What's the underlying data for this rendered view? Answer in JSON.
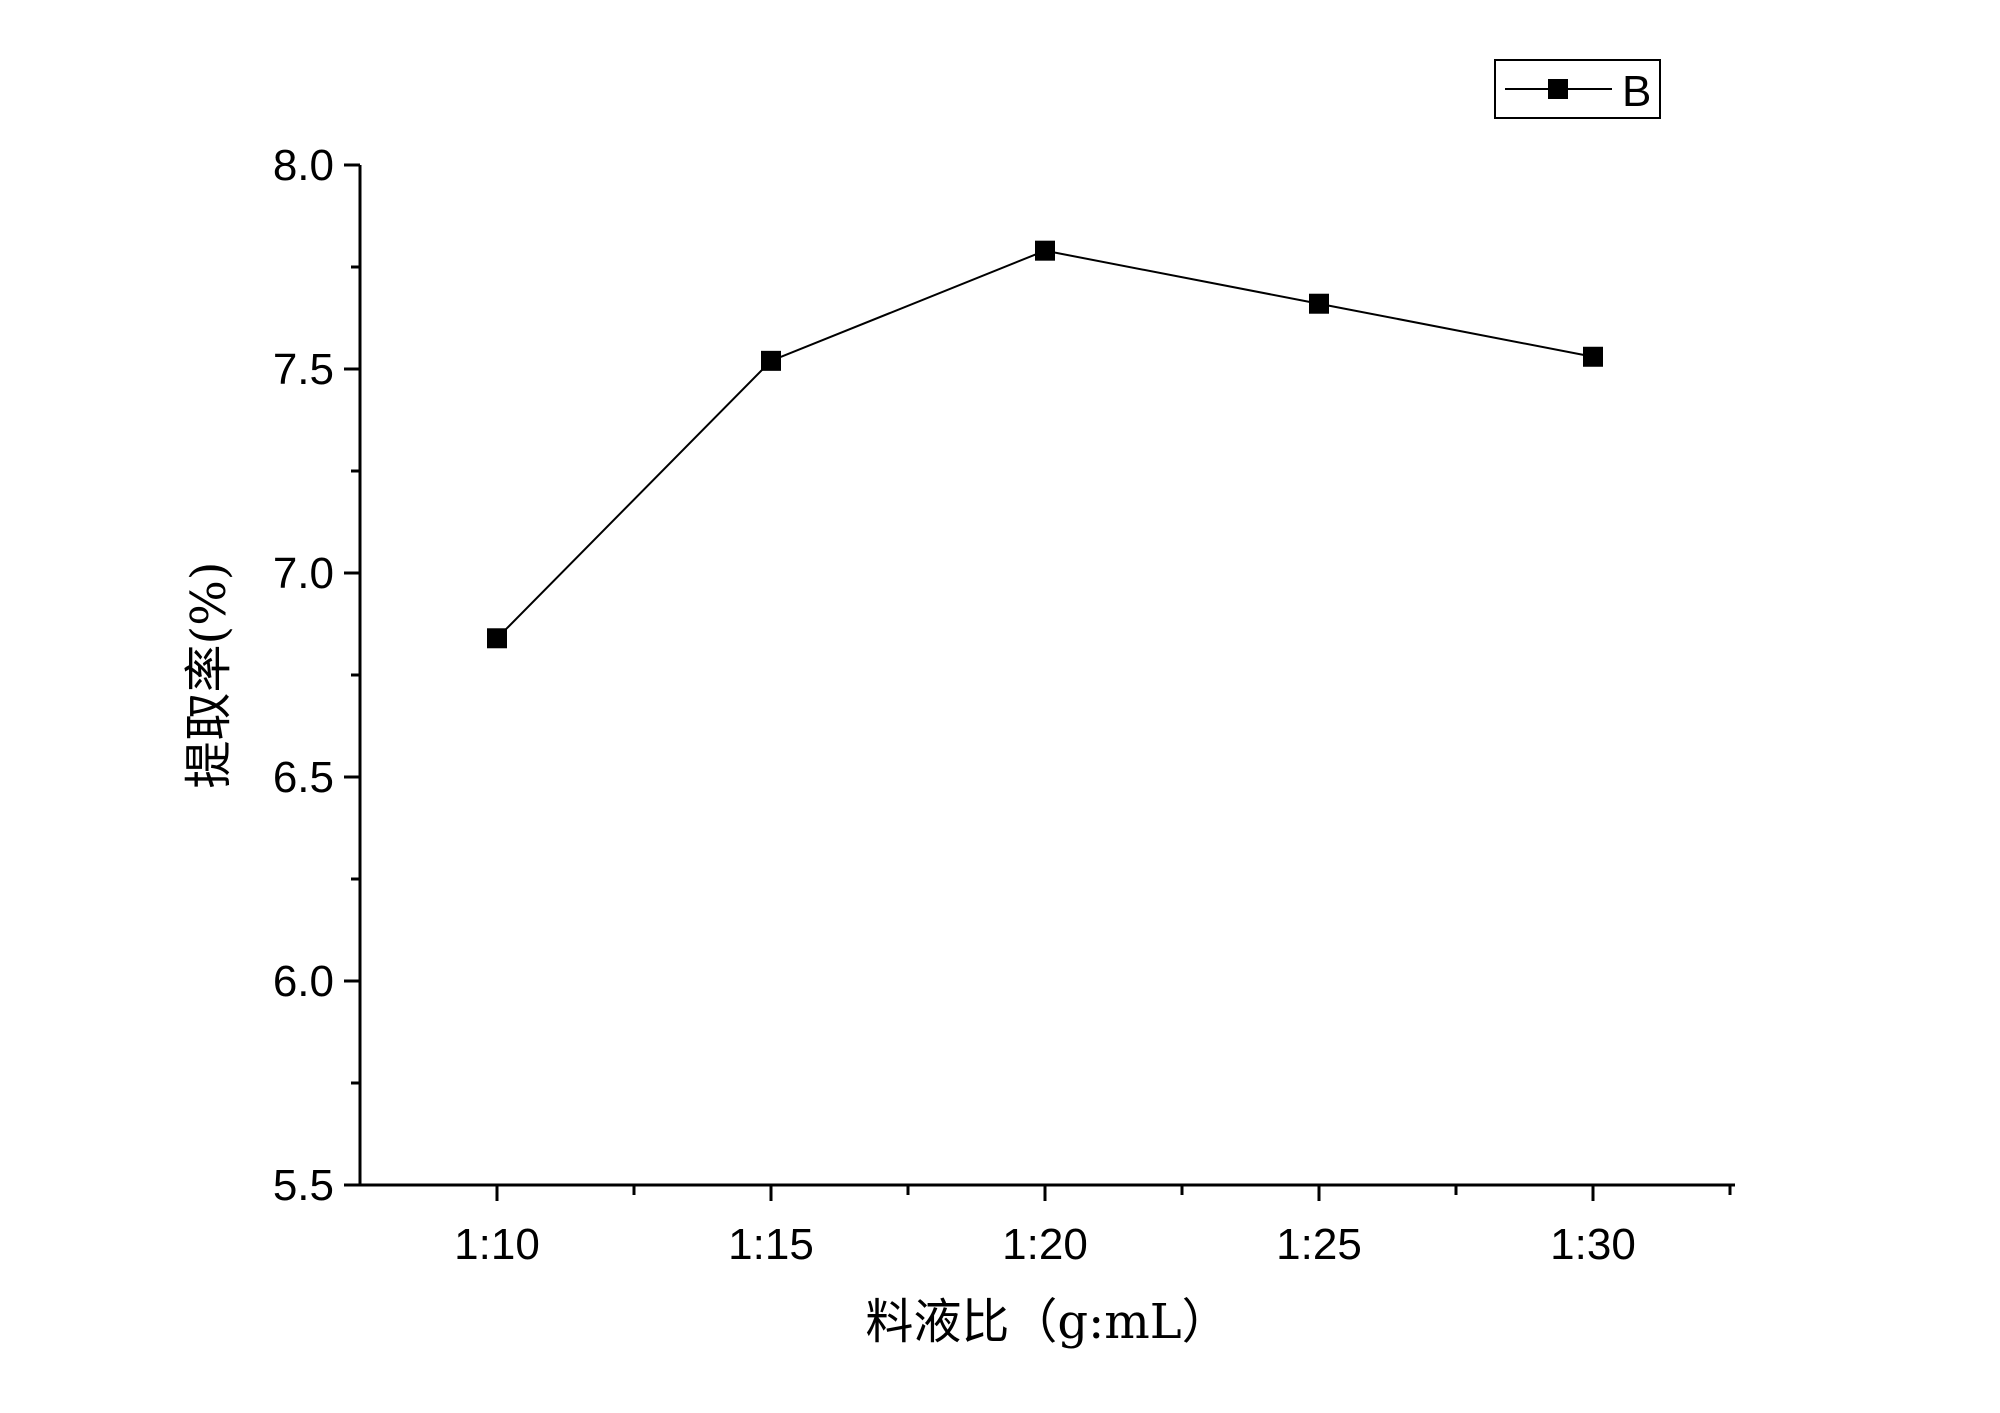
{
  "chart_data": {
    "type": "line",
    "categories": [
      "1:10",
      "1:15",
      "1:20",
      "1:25",
      "1:30"
    ],
    "series": [
      {
        "name": "B",
        "values": [
          6.84,
          7.52,
          7.79,
          7.66,
          7.53
        ]
      }
    ],
    "xlabel": "料液比（g:mL）",
    "ylabel": "提取率(%)",
    "ylim": [
      5.5,
      8.0
    ],
    "yticks": [
      "5.5",
      "6.0",
      "6.5",
      "7.0",
      "7.5",
      "8.0"
    ],
    "grid": false,
    "legend_position": "top-right",
    "line_color": "#000000",
    "marker": "square"
  }
}
